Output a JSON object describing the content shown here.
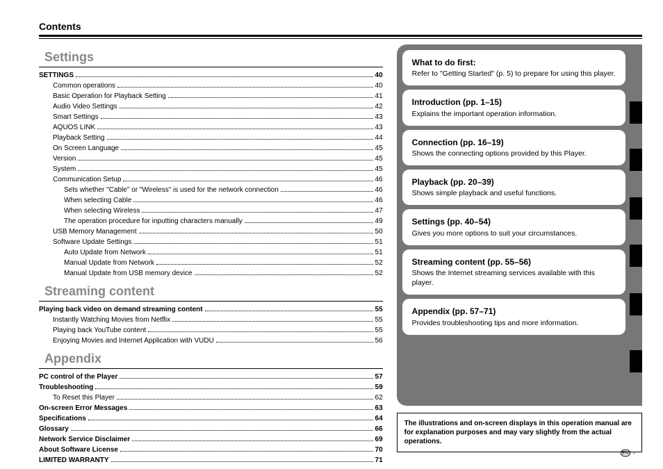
{
  "header": {
    "title": "Contents"
  },
  "sections": [
    {
      "heading": "Settings",
      "entries": [
        {
          "label": "SETTINGS",
          "page": "40",
          "indent": 0,
          "bold": true
        },
        {
          "label": "Common operations",
          "page": "40",
          "indent": 1
        },
        {
          "label": "Basic Operation for Playback Setting",
          "page": "41",
          "indent": 1
        },
        {
          "label": "Audio Video Settings",
          "page": "42",
          "indent": 1
        },
        {
          "label": "Smart Settings",
          "page": "43",
          "indent": 1
        },
        {
          "label": "AQUOS LINK",
          "page": "43",
          "indent": 1
        },
        {
          "label": "Playback Setting",
          "page": "44",
          "indent": 1
        },
        {
          "label": "On Screen Language",
          "page": "45",
          "indent": 1
        },
        {
          "label": "Version",
          "page": "45",
          "indent": 1
        },
        {
          "label": "System",
          "page": "45",
          "indent": 1
        },
        {
          "label": "Communication Setup",
          "page": "46",
          "indent": 1
        },
        {
          "label": "Sets whether \"Cable\" or \"Wireless\" is used for the network connection",
          "page": "46",
          "indent": 2
        },
        {
          "label": "When selecting Cable",
          "page": "46",
          "indent": 2
        },
        {
          "label": "When selecting Wireless",
          "page": "47",
          "indent": 2
        },
        {
          "label": "The operation procedure for inputting characters manually",
          "page": "49",
          "indent": 2
        },
        {
          "label": "USB Memory Management",
          "page": "50",
          "indent": 1
        },
        {
          "label": "Software Update Settings",
          "page": "51",
          "indent": 1
        },
        {
          "label": "Auto Update from Network",
          "page": "51",
          "indent": 2
        },
        {
          "label": "Manual Update from Network",
          "page": "52",
          "indent": 2
        },
        {
          "label": "Manual Update from USB memory device",
          "page": "52",
          "indent": 2
        }
      ]
    },
    {
      "heading": "Streaming content",
      "entries": [
        {
          "label": "Playing back video on demand streaming content",
          "page": "55",
          "indent": 0,
          "bold": true
        },
        {
          "label": "Instantly Watching Movies from Netflix",
          "page": "55",
          "indent": 1
        },
        {
          "label": "Playing back YouTube content",
          "page": "55",
          "indent": 1
        },
        {
          "label": "Enjoying Movies and Internet Application with VUDU",
          "page": "56",
          "indent": 1
        }
      ]
    },
    {
      "heading": "Appendix",
      "entries": [
        {
          "label": "PC control of the Player",
          "page": "57",
          "indent": 0,
          "bold": true
        },
        {
          "label": "Troubleshooting",
          "page": "59",
          "indent": 0,
          "bold": true
        },
        {
          "label": "To Reset this Player",
          "page": "62",
          "indent": 1
        },
        {
          "label": "On-screen Error Messages",
          "page": "63",
          "indent": 0,
          "bold": true
        },
        {
          "label": "Specifications",
          "page": "64",
          "indent": 0,
          "bold": true
        },
        {
          "label": "Glossary",
          "page": "66",
          "indent": 0,
          "bold": true
        },
        {
          "label": "Network Service Disclaimer",
          "page": "69",
          "indent": 0,
          "bold": true
        },
        {
          "label": "About Software License",
          "page": "70",
          "indent": 0,
          "bold": true
        },
        {
          "label": "LIMITED WARRANTY",
          "page": "71",
          "indent": 0,
          "bold": true
        }
      ]
    }
  ],
  "sidebar": {
    "cards": [
      {
        "title": "What to do first:",
        "body": "Refer to \"Getting Started\" (p. 5) to prepare for using this player."
      },
      {
        "title": "Introduction (pp. 1–15)",
        "body": "Explains the important operation information.",
        "tab": true,
        "tabTop": 82
      },
      {
        "title": "Connection (pp. 16–19)",
        "body": "Shows the connecting options provided by this Player.",
        "tab": true,
        "tabTop": 150
      },
      {
        "title": "Playback (pp. 20–39)",
        "body": "Shows simple playback and useful functions.",
        "tab": true,
        "tabTop": 220
      },
      {
        "title": "Settings (pp. 40–54)",
        "body": "Gives you more options to suit your circumstances.",
        "tab": true,
        "tabTop": 288
      },
      {
        "title": "Streaming content (pp. 55–56)",
        "body": "Shows the Internet streaming services available with this player.",
        "tab": true,
        "tabTop": 358
      },
      {
        "title": "Appendix (pp. 57–71)",
        "body": "Provides troubleshooting tips and more information.",
        "tab": true,
        "tabTop": 440
      }
    ],
    "note": "The illustrations and on-screen displays in this operation manual are for explanation purposes and may vary slightly from the actual operations."
  },
  "footer": {
    "lang": "EN",
    "dash": "-"
  },
  "colors": {
    "panel": "#777777",
    "gray_heading": "#888888"
  }
}
